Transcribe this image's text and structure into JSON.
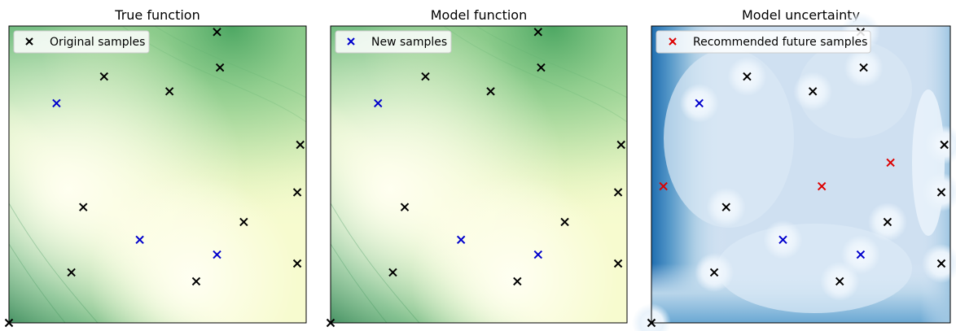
{
  "chart_data": [
    {
      "type": "contour",
      "title": "True function",
      "xlim": [
        0,
        1
      ],
      "ylim": [
        0,
        1
      ],
      "colormap": "Greens",
      "legend": {
        "label": "Original samples",
        "placement": "top-left",
        "marker": "x",
        "color": "#000000"
      },
      "series": [
        {
          "name": "Original samples",
          "color": "#000000",
          "points": [
            [
              0.7,
              0.98
            ],
            [
              0.71,
              0.86
            ],
            [
              0.32,
              0.83
            ],
            [
              0.54,
              0.78
            ],
            [
              0.98,
              0.6
            ],
            [
              0.97,
              0.44
            ],
            [
              0.25,
              0.39
            ],
            [
              0.79,
              0.34
            ],
            [
              0.97,
              0.2
            ],
            [
              0.21,
              0.17
            ],
            [
              0.63,
              0.14
            ],
            [
              0.0,
              0.0
            ]
          ]
        },
        {
          "name": "New samples",
          "color": "#0000cc",
          "points": [
            [
              0.16,
              0.74
            ],
            [
              0.44,
              0.28
            ],
            [
              0.7,
              0.23
            ]
          ]
        }
      ]
    },
    {
      "type": "contour",
      "title": "Model function",
      "xlim": [
        0,
        1
      ],
      "ylim": [
        0,
        1
      ],
      "colormap": "Greens",
      "legend": {
        "label": "New samples",
        "placement": "top-left",
        "marker": "x",
        "color": "#0000cc"
      },
      "series": [
        {
          "name": "Original samples",
          "color": "#000000",
          "points": [
            [
              0.7,
              0.98
            ],
            [
              0.71,
              0.86
            ],
            [
              0.32,
              0.83
            ],
            [
              0.54,
              0.78
            ],
            [
              0.98,
              0.6
            ],
            [
              0.97,
              0.44
            ],
            [
              0.25,
              0.39
            ],
            [
              0.79,
              0.34
            ],
            [
              0.97,
              0.2
            ],
            [
              0.21,
              0.17
            ],
            [
              0.63,
              0.14
            ],
            [
              0.0,
              0.0
            ]
          ]
        },
        {
          "name": "New samples",
          "color": "#0000cc",
          "points": [
            [
              0.16,
              0.74
            ],
            [
              0.44,
              0.28
            ],
            [
              0.7,
              0.23
            ]
          ]
        }
      ]
    },
    {
      "type": "contour",
      "title": "Model uncertainty",
      "xlim": [
        0,
        1
      ],
      "ylim": [
        0,
        1
      ],
      "colormap": "Blues",
      "legend": {
        "label": "Recommended future samples",
        "placement": "top-left",
        "marker": "x",
        "color": "#dd0000"
      },
      "series": [
        {
          "name": "Original samples",
          "color": "#000000",
          "points": [
            [
              0.7,
              0.98
            ],
            [
              0.71,
              0.86
            ],
            [
              0.32,
              0.83
            ],
            [
              0.54,
              0.78
            ],
            [
              0.98,
              0.6
            ],
            [
              0.97,
              0.44
            ],
            [
              0.25,
              0.39
            ],
            [
              0.79,
              0.34
            ],
            [
              0.97,
              0.2
            ],
            [
              0.21,
              0.17
            ],
            [
              0.63,
              0.14
            ],
            [
              0.0,
              0.0
            ]
          ]
        },
        {
          "name": "New samples",
          "color": "#0000cc",
          "points": [
            [
              0.16,
              0.74
            ],
            [
              0.44,
              0.28
            ],
            [
              0.7,
              0.23
            ]
          ]
        },
        {
          "name": "Recommended future samples",
          "color": "#dd0000",
          "points": [
            [
              0.04,
              0.46
            ],
            [
              0.57,
              0.46
            ],
            [
              0.8,
              0.54
            ]
          ]
        }
      ]
    }
  ]
}
